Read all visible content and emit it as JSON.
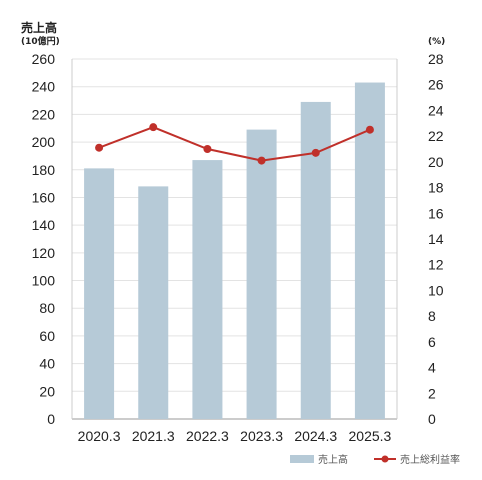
{
  "chart_data": {
    "type": "bar",
    "left_axis_title": "売上高",
    "left_axis_unit": "(10億円)",
    "right_axis_unit": "(%)",
    "categories": [
      "2020.3",
      "2021.3",
      "2022.3",
      "2023.3",
      "2024.3",
      "2025.3"
    ],
    "series": [
      {
        "name": "売上高",
        "type": "bar",
        "axis": "left",
        "color": "#b6cad7",
        "values": [
          181,
          168,
          187,
          209,
          229,
          243
        ]
      },
      {
        "name": "売上総利益率",
        "type": "line",
        "axis": "right",
        "color": "#c0302a",
        "values": [
          21.1,
          22.7,
          21.0,
          20.1,
          20.7,
          22.5
        ]
      }
    ],
    "y_left": {
      "min": 0,
      "max": 260,
      "step": 20
    },
    "y_right": {
      "min": 0,
      "max": 28,
      "step": 2
    },
    "grid": true,
    "legend_position": "bottom-right"
  }
}
